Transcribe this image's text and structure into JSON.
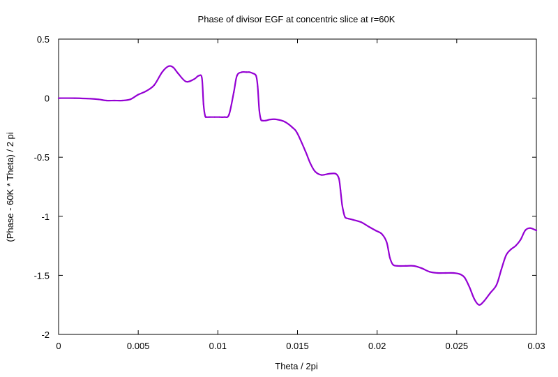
{
  "chart_data": {
    "type": "line",
    "title": "Phase of divisor EGF at concentric slice at r=60K",
    "xlabel": "Theta / 2pi",
    "ylabel": "(Phase - 60K * Theta) / 2 pi",
    "xlim": [
      0,
      0.03
    ],
    "ylim": [
      -2,
      0.5
    ],
    "x_ticks": [
      "0",
      "0.005",
      "0.01",
      "0.015",
      "0.02",
      "0.025",
      "0.03"
    ],
    "y_ticks": [
      "0.5",
      "0",
      "-0.5",
      "-1",
      "-1.5",
      "-2"
    ],
    "grid": false,
    "legend": "none",
    "series": [
      {
        "color": "#9400d3",
        "x": [
          0,
          0.001,
          0.002,
          0.0025,
          0.003,
          0.0035,
          0.004,
          0.0045,
          0.005,
          0.0055,
          0.006,
          0.0065,
          0.0069,
          0.0072,
          0.0075,
          0.008,
          0.0085,
          0.0088,
          0.009,
          0.0091,
          0.0092,
          0.0093,
          0.0095,
          0.0098,
          0.0101,
          0.0104,
          0.0107,
          0.011,
          0.0112,
          0.0115,
          0.0118,
          0.012,
          0.0122,
          0.0124,
          0.0125,
          0.0126,
          0.0127,
          0.0128,
          0.013,
          0.0133,
          0.0137,
          0.0142,
          0.0147,
          0.015,
          0.0155,
          0.0158,
          0.0161,
          0.0165,
          0.017,
          0.0174,
          0.0176,
          0.0177,
          0.0178,
          0.0179,
          0.018,
          0.0182,
          0.0185,
          0.019,
          0.0195,
          0.0199,
          0.0203,
          0.0206,
          0.0208,
          0.021,
          0.0213,
          0.0218,
          0.0223,
          0.0228,
          0.0233,
          0.0238,
          0.0243,
          0.0248,
          0.0252,
          0.0255,
          0.0258,
          0.0261,
          0.0264,
          0.0267,
          0.0271,
          0.0275,
          0.0278,
          0.0281,
          0.0284,
          0.0287,
          0.029,
          0.0293,
          0.0296,
          0.03
        ],
        "y": [
          0.0,
          0.0,
          -0.005,
          -0.01,
          -0.02,
          -0.02,
          -0.02,
          -0.01,
          0.03,
          0.06,
          0.11,
          0.22,
          0.27,
          0.26,
          0.21,
          0.14,
          0.16,
          0.19,
          0.17,
          -0.05,
          -0.15,
          -0.16,
          -0.16,
          -0.16,
          -0.16,
          -0.16,
          -0.14,
          0.05,
          0.19,
          0.22,
          0.22,
          0.22,
          0.21,
          0.19,
          0.1,
          -0.1,
          -0.18,
          -0.19,
          -0.19,
          -0.18,
          -0.18,
          -0.2,
          -0.25,
          -0.3,
          -0.45,
          -0.55,
          -0.62,
          -0.65,
          -0.64,
          -0.64,
          -0.68,
          -0.78,
          -0.9,
          -0.97,
          -1.01,
          -1.02,
          -1.03,
          -1.05,
          -1.09,
          -1.12,
          -1.15,
          -1.22,
          -1.35,
          -1.41,
          -1.42,
          -1.42,
          -1.42,
          -1.44,
          -1.47,
          -1.48,
          -1.48,
          -1.48,
          -1.49,
          -1.52,
          -1.6,
          -1.7,
          -1.75,
          -1.72,
          -1.65,
          -1.58,
          -1.45,
          -1.33,
          -1.28,
          -1.25,
          -1.2,
          -1.12,
          -1.1,
          -1.12
        ]
      }
    ]
  }
}
